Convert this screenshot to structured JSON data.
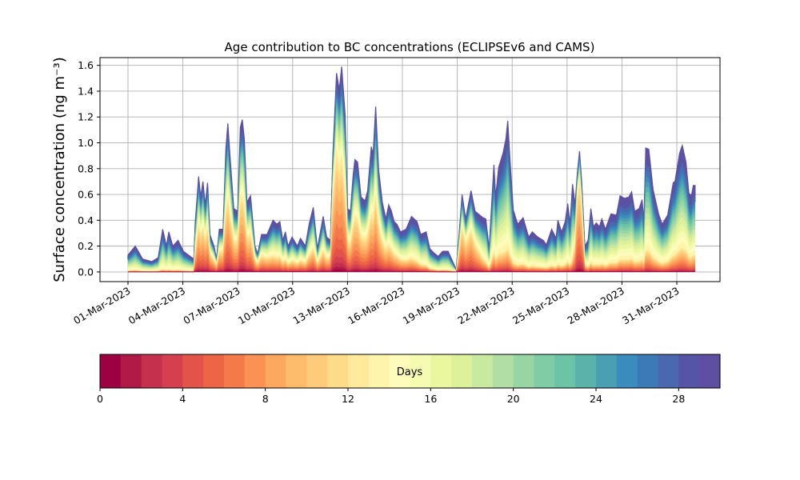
{
  "chart_data": {
    "type": "area",
    "title": "Age contribution to BC concentrations (ECLIPSEv6 and CAMS)",
    "ylabel": "Surface concentration (ng m⁻³)",
    "xlabel": "",
    "ylim": [
      -0.075,
      1.66
    ],
    "yticks": [
      0.0,
      0.2,
      0.4,
      0.6,
      0.8,
      1.0,
      1.2,
      1.4,
      1.6
    ],
    "ytick_labels": [
      "0.0",
      "0.2",
      "0.4",
      "0.6",
      "0.8",
      "1.0",
      "1.2",
      "1.4",
      "1.6"
    ],
    "x_unit": "days since 01-Mar-2023",
    "xlim": [
      -1.53,
      32.36
    ],
    "xticks": [
      0,
      3,
      6,
      9,
      12,
      15,
      18,
      21,
      24,
      27,
      30
    ],
    "xtick_labels": [
      "01-Mar-2023",
      "04-Mar-2023",
      "07-Mar-2023",
      "10-Mar-2023",
      "13-Mar-2023",
      "16-Mar-2023",
      "19-Mar-2023",
      "22-Mar-2023",
      "25-Mar-2023",
      "28-Mar-2023",
      "31-Mar-2023"
    ],
    "grid": true,
    "total_series": [
      [
        0,
        0.13
      ],
      [
        0.4,
        0.2
      ],
      [
        0.8,
        0.1
      ],
      [
        1.3,
        0.08
      ],
      [
        1.65,
        0.11
      ],
      [
        1.9,
        0.33
      ],
      [
        2.1,
        0.2
      ],
      [
        2.23,
        0.31
      ],
      [
        2.45,
        0.2
      ],
      [
        2.74,
        0.245
      ],
      [
        3.03,
        0.16
      ],
      [
        3.6,
        0.1
      ],
      [
        3.68,
        0.39
      ],
      [
        3.86,
        0.74
      ],
      [
        3.97,
        0.58
      ],
      [
        4.1,
        0.7
      ],
      [
        4.22,
        0.52
      ],
      [
        4.35,
        0.69
      ],
      [
        4.48,
        0.29
      ],
      [
        4.7,
        0.2
      ],
      [
        4.84,
        0.1
      ],
      [
        4.99,
        0.33
      ],
      [
        5.2,
        0.33
      ],
      [
        5.35,
        0.95
      ],
      [
        5.46,
        1.15
      ],
      [
        5.57,
        0.91
      ],
      [
        5.78,
        0.49
      ],
      [
        6.0,
        0.47
      ],
      [
        6.14,
        1.12
      ],
      [
        6.25,
        1.18
      ],
      [
        6.36,
        1.03
      ],
      [
        6.5,
        0.54
      ],
      [
        6.7,
        0.59
      ],
      [
        6.94,
        0.2
      ],
      [
        7.09,
        0.14
      ],
      [
        7.3,
        0.29
      ],
      [
        7.6,
        0.29
      ],
      [
        7.93,
        0.4
      ],
      [
        8.13,
        0.37
      ],
      [
        8.3,
        0.39
      ],
      [
        8.46,
        0.245
      ],
      [
        8.6,
        0.31
      ],
      [
        8.75,
        0.2
      ],
      [
        8.97,
        0.27
      ],
      [
        9.26,
        0.2
      ],
      [
        9.43,
        0.26
      ],
      [
        9.7,
        0.2
      ],
      [
        9.9,
        0.37
      ],
      [
        10.13,
        0.5
      ],
      [
        10.35,
        0.18
      ],
      [
        10.67,
        0.43
      ],
      [
        10.86,
        0.27
      ],
      [
        11.07,
        0.245
      ],
      [
        11.2,
        0.91
      ],
      [
        11.4,
        1.54
      ],
      [
        11.55,
        1.41
      ],
      [
        11.68,
        1.59
      ],
      [
        11.87,
        1.22
      ],
      [
        12.0,
        0.49
      ],
      [
        12.16,
        0.47
      ],
      [
        12.3,
        0.74
      ],
      [
        12.4,
        0.87
      ],
      [
        12.55,
        0.85
      ],
      [
        12.74,
        0.58
      ],
      [
        12.96,
        0.55
      ],
      [
        13.1,
        0.63
      ],
      [
        13.3,
        0.97
      ],
      [
        13.4,
        0.91
      ],
      [
        13.54,
        1.28
      ],
      [
        13.7,
        0.79
      ],
      [
        13.9,
        0.54
      ],
      [
        14.1,
        0.41
      ],
      [
        14.25,
        0.52
      ],
      [
        14.4,
        0.47
      ],
      [
        14.55,
        0.39
      ],
      [
        14.7,
        0.37
      ],
      [
        14.9,
        0.31
      ],
      [
        15.2,
        0.33
      ],
      [
        15.5,
        0.43
      ],
      [
        15.8,
        0.39
      ],
      [
        16.0,
        0.29
      ],
      [
        16.3,
        0.31
      ],
      [
        16.5,
        0.18
      ],
      [
        16.7,
        0.15
      ],
      [
        16.96,
        0.12
      ],
      [
        17.2,
        0.16
      ],
      [
        17.5,
        0.16
      ],
      [
        17.94,
        0.02
      ],
      [
        18.1,
        0.29
      ],
      [
        18.26,
        0.6
      ],
      [
        18.46,
        0.41
      ],
      [
        18.75,
        0.63
      ],
      [
        18.97,
        0.47
      ],
      [
        19.4,
        0.42
      ],
      [
        19.56,
        0.41
      ],
      [
        19.74,
        0.18
      ],
      [
        20.0,
        0.83
      ],
      [
        20.1,
        0.58
      ],
      [
        20.26,
        0.81
      ],
      [
        20.5,
        0.92
      ],
      [
        20.66,
        1.03
      ],
      [
        20.76,
        1.17
      ],
      [
        20.88,
        0.87
      ],
      [
        21.06,
        0.48
      ],
      [
        21.3,
        0.37
      ],
      [
        21.6,
        0.42
      ],
      [
        21.9,
        0.27
      ],
      [
        22.1,
        0.31
      ],
      [
        22.4,
        0.27
      ],
      [
        22.7,
        0.245
      ],
      [
        22.87,
        0.21
      ],
      [
        23.16,
        0.33
      ],
      [
        23.4,
        0.26
      ],
      [
        23.5,
        0.4
      ],
      [
        23.7,
        0.31
      ],
      [
        23.9,
        0.39
      ],
      [
        24.04,
        0.53
      ],
      [
        24.16,
        0.37
      ],
      [
        24.3,
        0.68
      ],
      [
        24.44,
        0.52
      ],
      [
        24.56,
        0.76
      ],
      [
        24.68,
        0.935
      ],
      [
        24.8,
        0.7
      ],
      [
        24.97,
        0.2
      ],
      [
        25.15,
        0.245
      ],
      [
        25.3,
        0.49
      ],
      [
        25.44,
        0.35
      ],
      [
        25.6,
        0.38
      ],
      [
        25.77,
        0.35
      ],
      [
        25.9,
        0.41
      ],
      [
        26.1,
        0.33
      ],
      [
        26.4,
        0.45
      ],
      [
        26.7,
        0.44
      ],
      [
        26.9,
        0.59
      ],
      [
        27.13,
        0.57
      ],
      [
        27.38,
        0.58
      ],
      [
        27.53,
        0.62
      ],
      [
        27.7,
        0.47
      ],
      [
        27.94,
        0.49
      ],
      [
        28.1,
        0.56
      ],
      [
        28.2,
        0.39
      ],
      [
        28.3,
        0.96
      ],
      [
        28.47,
        0.95
      ],
      [
        28.7,
        0.64
      ],
      [
        29.0,
        0.45
      ],
      [
        29.2,
        0.37
      ],
      [
        29.5,
        0.44
      ],
      [
        29.8,
        0.69
      ],
      [
        29.9,
        0.7
      ],
      [
        30.15,
        0.92
      ],
      [
        30.3,
        0.98
      ],
      [
        30.5,
        0.85
      ],
      [
        30.66,
        0.61
      ],
      [
        30.8,
        0.59
      ],
      [
        30.9,
        0.67
      ],
      [
        31.0,
        0.67
      ]
    ],
    "young_share": [
      [
        0,
        0.05
      ],
      [
        3.6,
        0.05
      ],
      [
        3.7,
        0.5
      ],
      [
        7,
        0.5
      ],
      [
        8,
        0.3
      ],
      [
        11,
        0.4
      ],
      [
        11.2,
        0.65
      ],
      [
        12,
        0.5
      ],
      [
        14,
        0.45
      ],
      [
        15,
        0.3
      ],
      [
        17,
        0.1
      ],
      [
        18.05,
        0.05
      ],
      [
        18.1,
        0.6
      ],
      [
        18.9,
        0.5
      ],
      [
        19.5,
        0.2
      ],
      [
        21,
        0.15
      ],
      [
        24.4,
        0.15
      ],
      [
        24.5,
        0.8
      ],
      [
        24.9,
        0.7
      ],
      [
        25,
        0.15
      ],
      [
        31,
        0.2
      ]
    ],
    "colorbar": {
      "label": "Days",
      "range": [
        0,
        30
      ],
      "ticks": [
        0,
        4,
        8,
        12,
        16,
        20,
        24,
        28
      ],
      "tick_labels": [
        "0",
        "4",
        "8",
        "12",
        "16",
        "20",
        "24",
        "28"
      ],
      "colors": [
        "#9e0142",
        "#b11a47",
        "#c5304c",
        "#d6404e",
        "#e3534a",
        "#ee6545",
        "#f57a4a",
        "#f99254",
        "#fca85f",
        "#fdbb6c",
        "#fdcb7a",
        "#fedb88",
        "#feea9a",
        "#fff4ac",
        "#fffcbb",
        "#f5fbb1",
        "#eaf79f",
        "#dcf19a",
        "#c7e9a0",
        "#b0dea3",
        "#98d5a4",
        "#80cca5",
        "#6bc4a5",
        "#5ab2aa",
        "#4aa0b2",
        "#3a8cbc",
        "#3b7ab6",
        "#4a68ad",
        "#5654a4",
        "#5e4fa2"
      ]
    }
  }
}
